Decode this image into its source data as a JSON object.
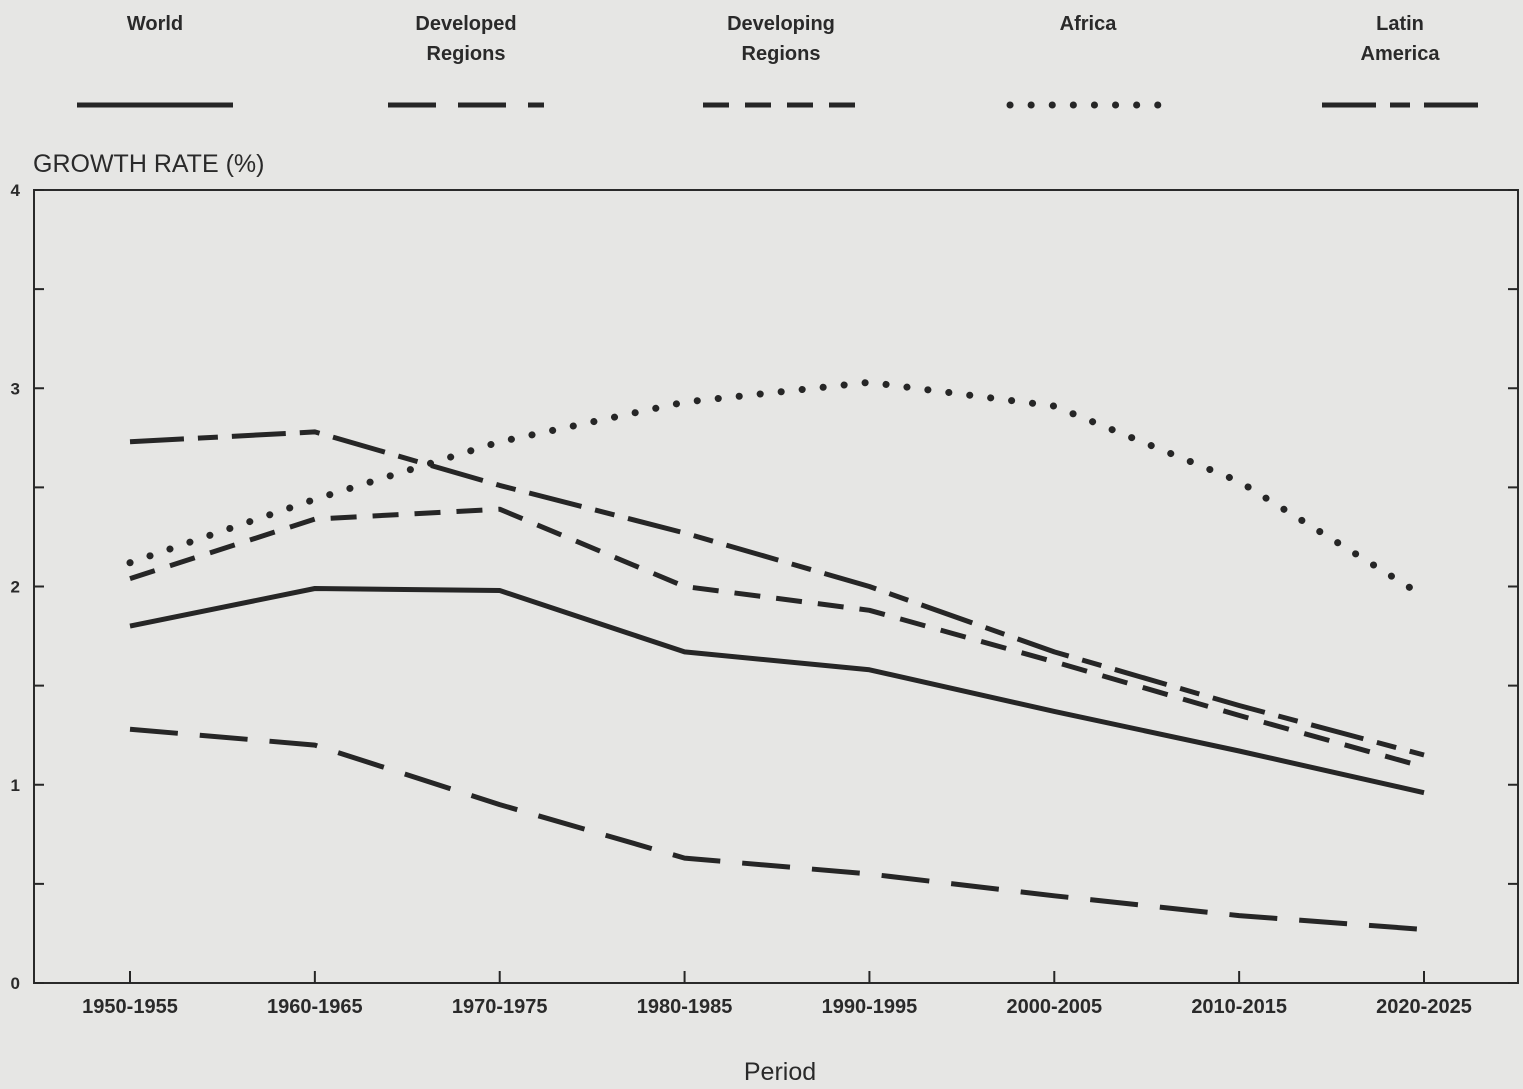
{
  "chart_data": {
    "type": "line",
    "title": "",
    "ylabel": "GROWTH RATE (%)",
    "xlabel": "Period",
    "categories": [
      "1950-1955",
      "1960-1965",
      "1970-1975",
      "1980-1985",
      "1990-1995",
      "2000-2005",
      "2010-2015",
      "2020-2025"
    ],
    "ylim": [
      0,
      4
    ],
    "yticks": [
      "0",
      "1",
      "2",
      "3",
      "4"
    ],
    "grid": false,
    "legend_position": "top",
    "series": [
      {
        "name": "World",
        "dash": "solid",
        "values": [
          1.8,
          1.99,
          1.98,
          1.67,
          1.58,
          1.37,
          1.17,
          0.96
        ]
      },
      {
        "name": "Developed Regions",
        "dash": "long-dash",
        "values": [
          1.28,
          1.2,
          0.9,
          0.63,
          0.55,
          0.44,
          0.34,
          0.27
        ]
      },
      {
        "name": "Developing Regions",
        "dash": "short-dash",
        "values": [
          2.04,
          2.34,
          2.39,
          2.0,
          1.88,
          1.62,
          1.35,
          1.09
        ]
      },
      {
        "name": "Africa",
        "dash": "dotted",
        "values": [
          2.12,
          2.44,
          2.73,
          2.93,
          3.03,
          2.91,
          2.53,
          1.95
        ]
      },
      {
        "name": "Latin America",
        "dash": "long-short",
        "values": [
          2.73,
          2.78,
          2.51,
          2.27,
          2.0,
          1.67,
          1.4,
          1.15
        ]
      }
    ]
  }
}
